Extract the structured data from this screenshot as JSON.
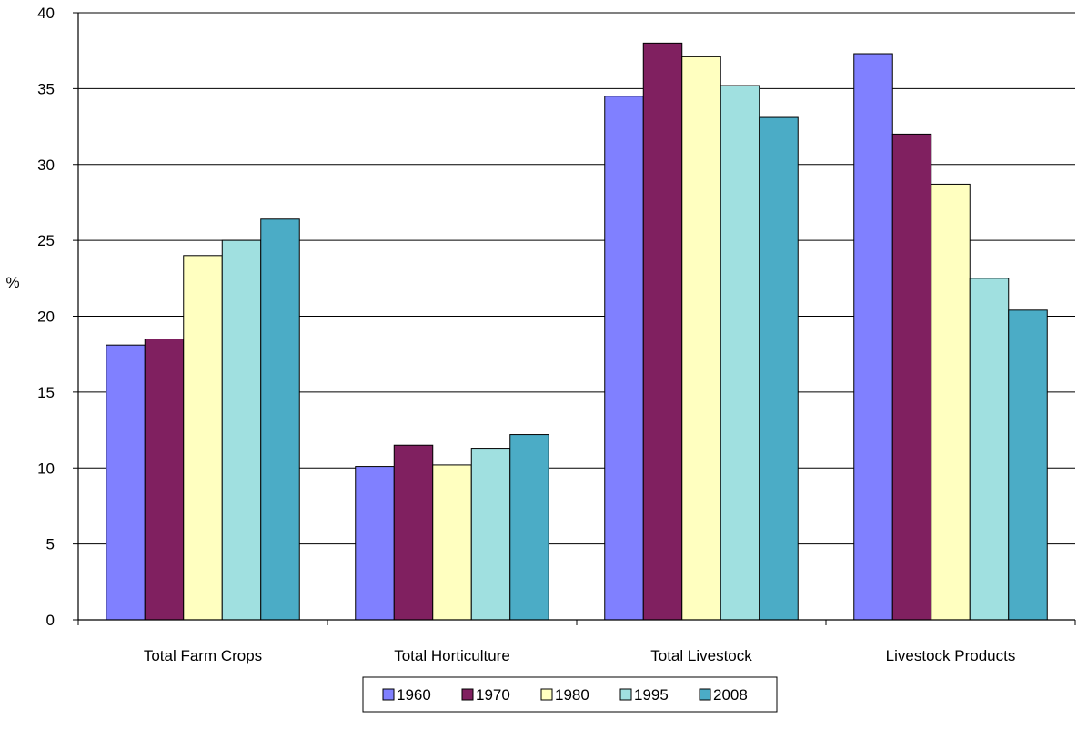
{
  "chart_data": {
    "type": "bar",
    "title": "",
    "xlabel": "",
    "ylabel": "%",
    "ylim": [
      0,
      40
    ],
    "yticks": [
      0,
      5,
      10,
      15,
      20,
      25,
      30,
      35,
      40
    ],
    "grid": true,
    "legend_position": "bottom",
    "categories": [
      "Total Farm Crops",
      "Total Horticulture",
      "Total Livestock",
      "Livestock Products"
    ],
    "series": [
      {
        "name": "1960",
        "color": "#8080ff",
        "values": [
          18.1,
          10.1,
          34.5,
          37.3
        ]
      },
      {
        "name": "1970",
        "color": "#802060",
        "values": [
          18.5,
          11.5,
          38.0,
          32.0
        ]
      },
      {
        "name": "1980",
        "color": "#ffffc0",
        "values": [
          24.0,
          10.2,
          37.1,
          28.7
        ]
      },
      {
        "name": "1995",
        "color": "#a0e0e0",
        "values": [
          25.0,
          11.3,
          35.2,
          22.5
        ]
      },
      {
        "name": "2008",
        "color": "#4bacc6",
        "values": [
          26.4,
          12.2,
          33.1,
          20.4
        ]
      }
    ]
  }
}
